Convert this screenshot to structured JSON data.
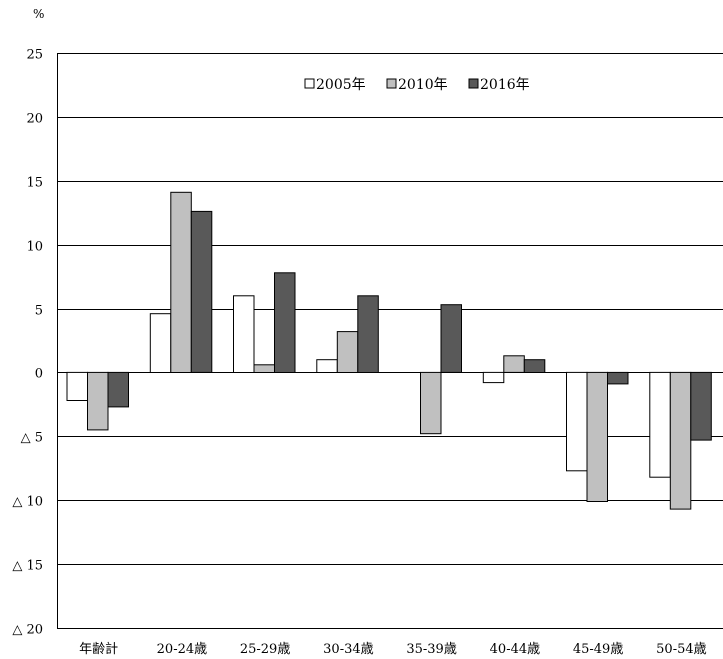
{
  "chart_data": {
    "type": "bar",
    "ylabel": "%",
    "ylim": [
      -20,
      25
    ],
    "yticks": [
      25,
      20,
      15,
      10,
      5,
      0,
      -5,
      -10,
      -15,
      -20
    ],
    "ytick_labels": [
      "25",
      "20",
      "15",
      "10",
      "5",
      "0",
      "△ 5",
      "△ 10",
      "△ 15",
      "△ 20"
    ],
    "categories": [
      "年齢計",
      "20-24歳",
      "25-29歳",
      "30-34歳",
      "35-39歳",
      "40-44歳",
      "45-49歳",
      "50-54歳"
    ],
    "series": [
      {
        "name": "2005年",
        "color": "#ffffff",
        "values": [
          -2.2,
          4.6,
          6.0,
          1.0,
          0.0,
          -0.8,
          -7.7,
          -8.2
        ]
      },
      {
        "name": "2010年",
        "color": "#c0c0c0",
        "values": [
          -4.5,
          14.1,
          0.6,
          3.2,
          -4.8,
          1.3,
          -10.1,
          -10.7
        ]
      },
      {
        "name": "2016年",
        "color": "#595959",
        "values": [
          -2.7,
          12.6,
          7.8,
          6.0,
          5.3,
          1.0,
          -0.9,
          -5.3
        ]
      }
    ],
    "grid": true,
    "legend_position": "top-center"
  }
}
